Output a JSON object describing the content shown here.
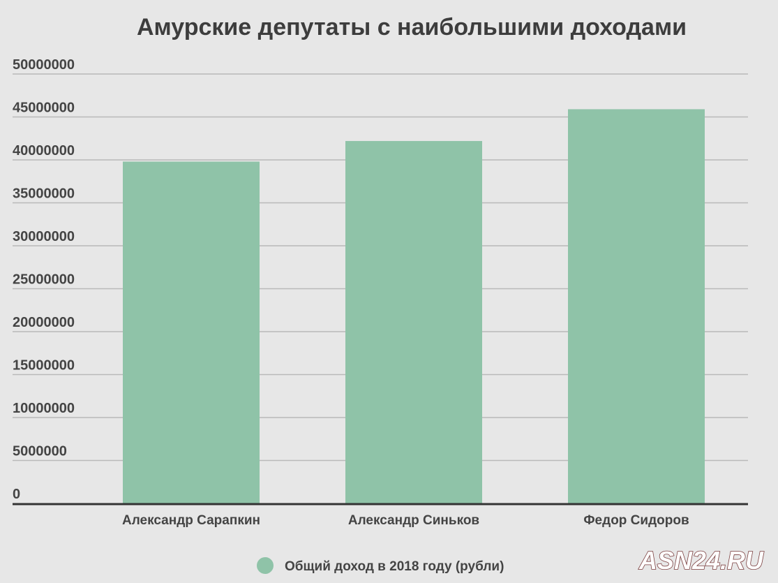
{
  "chart_data": {
    "type": "bar",
    "title": "Амурские депутаты с наибольшими доходами",
    "categories": [
      "Александр Сарапкин",
      "Александр Синьков",
      "Федор Сидоров"
    ],
    "series": [
      {
        "name": "Общий доход в 2018 году (рубли)",
        "values": [
          39800000,
          42200000,
          45900000
        ],
        "color": "#8fc3a8"
      }
    ],
    "xlabel": "",
    "ylabel": "",
    "ylim": [
      0,
      50000000
    ],
    "yticks": [
      "0",
      "5000000",
      "10000000",
      "15000000",
      "20000000",
      "25000000",
      "30000000",
      "35000000",
      "40000000",
      "45000000",
      "50000000"
    ],
    "grid": true,
    "legend_position": "bottom"
  },
  "watermark": "ASN24.RU",
  "colors": {
    "background": "#e7e7e7",
    "gridline": "#b9b9b9",
    "axis": "#333333",
    "bar": "#8fc3a8",
    "watermark_stroke": "#7a3d3d"
  }
}
